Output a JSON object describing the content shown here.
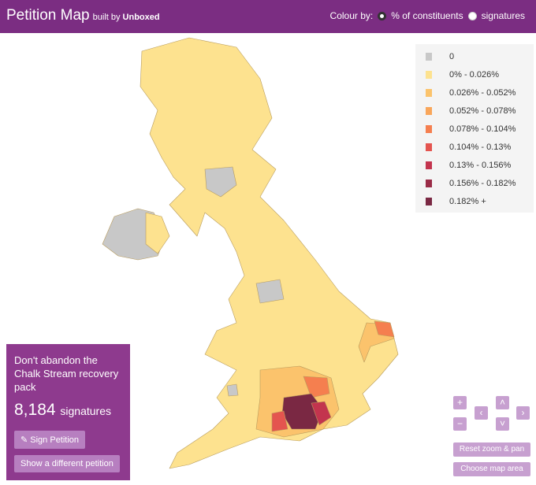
{
  "header": {
    "title": "Petition Map",
    "subtitle": "built by",
    "brand": "Unboxed"
  },
  "colour_by": {
    "label": "Colour by:",
    "options": [
      "% of constituents",
      "signatures"
    ]
  },
  "legend": [
    {
      "label": "0",
      "color": "#c8c8c8"
    },
    {
      "label": "0% - 0.026%",
      "color": "#fde28f"
    },
    {
      "label": "0.026% - 0.052%",
      "color": "#fbc36c"
    },
    {
      "label": "0.052% - 0.078%",
      "color": "#f9a65a"
    },
    {
      "label": "0.078% - 0.104%",
      "color": "#f57f4f"
    },
    {
      "label": "0.104% - 0.13%",
      "color": "#e4544f"
    },
    {
      "label": "0.13% - 0.156%",
      "color": "#c3344e"
    },
    {
      "label": "0.156% - 0.182%",
      "color": "#9a2c47"
    },
    {
      "label": "0.182% +",
      "color": "#7a2843"
    }
  ],
  "petition": {
    "title": "Don't abandon the Chalk Stream recovery pack",
    "count": "8,184",
    "unit": "signatures",
    "buttons": [
      "Sign Petition",
      "Show a different petition"
    ]
  },
  "controls": [
    "Reset zoom & pan",
    "Choose map area"
  ]
}
